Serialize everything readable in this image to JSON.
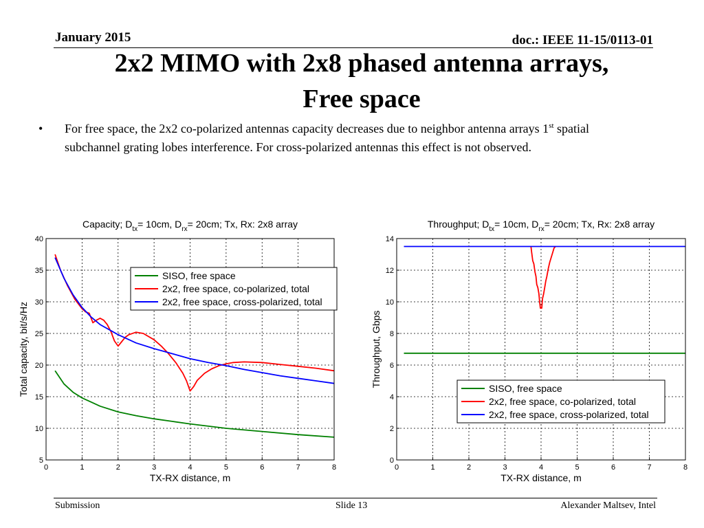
{
  "header": {
    "date": "January 2015",
    "doc": "doc.: IEEE 11-15/0113-01"
  },
  "title": {
    "line1": "2x2 MIMO with 2x8 phased antenna arrays,",
    "line2": "Free space"
  },
  "bullet": {
    "symbol": "•",
    "text_before_sup": "For free space, the 2x2 co-polarized antennas capacity decreases due to neighbor antenna arrays 1",
    "sup": "st",
    "text_after_sup": " spatial subchannel grating lobes interference. For cross-polarized antennas this effect is not observed."
  },
  "footer": {
    "left": "Submission",
    "center": "Slide 13",
    "right": "Alexander Maltsev, Intel"
  },
  "colors": {
    "siso": "#008000",
    "co": "#ff0000",
    "cross": "#0000ff",
    "title_text": "#000000"
  },
  "chart_data": [
    {
      "type": "line",
      "title_prefix": "Capacity; D",
      "title_sub1": "tx",
      "title_mid": "= 10cm, D",
      "title_sub2": "rx",
      "title_suffix": "= 20cm; Tx, Rx: 2x8 array",
      "xlabel": "TX-RX distance, m",
      "ylabel": "Total capacity, bit/s/Hz",
      "xlim": [
        0,
        8
      ],
      "ylim": [
        5,
        40
      ],
      "xticks": [
        0,
        1,
        2,
        3,
        4,
        5,
        6,
        7,
        8
      ],
      "yticks": [
        5,
        10,
        15,
        20,
        25,
        30,
        35,
        40
      ],
      "grid": true,
      "legend_position": "top-right",
      "series": [
        {
          "name": "SISO, free space",
          "color_key": "siso",
          "x": [
            0.25,
            0.5,
            0.75,
            1,
            1.5,
            2,
            2.5,
            3,
            3.5,
            4,
            5,
            6,
            7,
            8
          ],
          "y": [
            19.1,
            17.0,
            15.7,
            14.8,
            13.5,
            12.6,
            12.0,
            11.5,
            11.1,
            10.7,
            10.0,
            9.5,
            9.0,
            8.6
          ]
        },
        {
          "name": "2x2, free space, co-polarized, total",
          "color_key": "co",
          "x": [
            0.25,
            0.4,
            0.6,
            0.8,
            1,
            1.1,
            1.2,
            1.3,
            1.4,
            1.5,
            1.6,
            1.7,
            1.8,
            1.9,
            2,
            2.1,
            2.2,
            2.3,
            2.5,
            2.7,
            3,
            3.2,
            3.4,
            3.6,
            3.8,
            3.9,
            4,
            4.1,
            4.2,
            4.4,
            4.6,
            4.8,
            5,
            5.2,
            5.5,
            6,
            6.5,
            7,
            7.5,
            8
          ],
          "y": [
            37.5,
            35.0,
            32.5,
            30.4,
            28.9,
            28.4,
            28.2,
            26.7,
            27.1,
            27.4,
            27.1,
            26.4,
            25.3,
            23.8,
            23.0,
            23.7,
            24.4,
            24.8,
            25.2,
            25.0,
            24.0,
            23.0,
            21.8,
            20.4,
            18.7,
            17.5,
            15.9,
            16.6,
            17.6,
            18.7,
            19.4,
            19.9,
            20.2,
            20.4,
            20.5,
            20.4,
            20.1,
            19.8,
            19.5,
            19.1
          ]
        },
        {
          "name": "2x2, free space, cross-polarized, total",
          "color_key": "cross",
          "x": [
            0.25,
            0.5,
            0.75,
            1,
            1.25,
            1.5,
            2,
            2.5,
            3,
            3.5,
            4,
            4.5,
            5,
            5.5,
            6,
            6.5,
            7,
            7.5,
            8
          ],
          "y": [
            37.0,
            33.7,
            31.1,
            29.1,
            27.6,
            26.4,
            24.8,
            23.5,
            22.6,
            21.8,
            21.0,
            20.4,
            19.9,
            19.3,
            18.8,
            18.3,
            17.9,
            17.5,
            17.1
          ]
        }
      ]
    },
    {
      "type": "line",
      "title_prefix": "Throughput; D",
      "title_sub1": "tx",
      "title_mid": "= 10cm, D",
      "title_sub2": "rx",
      "title_suffix": "= 20cm; Tx, Rx: 2x8 array",
      "xlabel": "TX-RX distance, m",
      "ylabel": "Throughput, Gbps",
      "xlim": [
        0,
        8
      ],
      "ylim": [
        0,
        14
      ],
      "xticks": [
        0,
        1,
        2,
        3,
        4,
        5,
        6,
        7,
        8
      ],
      "yticks": [
        0,
        2,
        4,
        6,
        8,
        10,
        12,
        14
      ],
      "grid": true,
      "legend_position": "bottom-right",
      "series": [
        {
          "name": "SISO, free space",
          "color_key": "siso",
          "x": [
            0.2,
            8
          ],
          "y": [
            6.75,
            6.75
          ]
        },
        {
          "name": "2x2, free space, co-polarized, total",
          "color_key": "co",
          "x": [
            3.72,
            3.74,
            3.77,
            3.8,
            3.83,
            3.86,
            3.88,
            3.91,
            3.94,
            3.96,
            3.98,
            4.0,
            4.02,
            4.04,
            4.07,
            4.1,
            4.13,
            4.16,
            4.2,
            4.24,
            4.28,
            4.32,
            4.36,
            4.4
          ],
          "y": [
            13.5,
            13.1,
            12.6,
            12.4,
            11.9,
            11.6,
            11.1,
            10.9,
            10.5,
            10.0,
            9.6,
            9.6,
            9.6,
            10.2,
            10.5,
            10.9,
            11.3,
            11.6,
            12.1,
            12.5,
            12.8,
            13.1,
            13.4,
            13.5
          ]
        },
        {
          "name": "2x2, free space, cross-polarized, total",
          "color_key": "cross",
          "x": [
            0.2,
            8
          ],
          "y": [
            13.5,
            13.5
          ]
        }
      ]
    }
  ]
}
